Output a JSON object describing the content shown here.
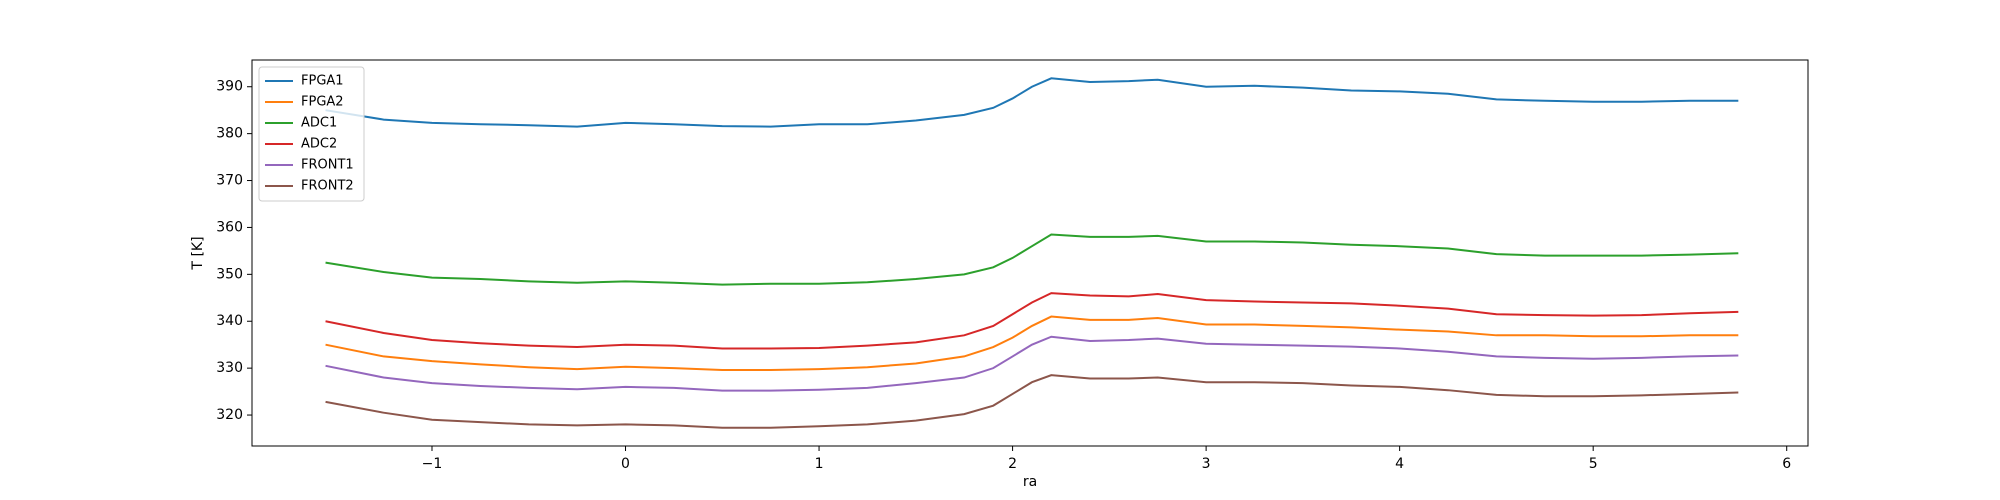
{
  "chart_data": {
    "type": "line",
    "xlabel": "ra",
    "ylabel": "T [K]",
    "x": [
      -1.55,
      -1.25,
      -1.0,
      -0.75,
      -0.5,
      -0.25,
      0,
      0.25,
      0.5,
      0.75,
      1.0,
      1.25,
      1.5,
      1.75,
      1.9,
      2.0,
      2.1,
      2.2,
      2.4,
      2.6,
      2.75,
      3.0,
      3.25,
      3.5,
      3.75,
      4.0,
      4.25,
      4.5,
      4.75,
      5.0,
      5.25,
      5.5,
      5.75
    ],
    "series": [
      {
        "name": "FPGA1",
        "color": "#1f77b4",
        "values": [
          385,
          383,
          382.3,
          382,
          381.8,
          381.5,
          382.3,
          382,
          381.6,
          381.5,
          382,
          382,
          382.8,
          384,
          385.5,
          387.5,
          390,
          391.8,
          391,
          391.2,
          391.5,
          390,
          390.2,
          389.8,
          389.2,
          389,
          388.5,
          387.3,
          387,
          386.8,
          386.8,
          387,
          387
        ]
      },
      {
        "name": "FPGA2",
        "color": "#ff7f0e",
        "values": [
          335,
          332.5,
          331.5,
          330.8,
          330.2,
          329.8,
          330.3,
          330,
          329.6,
          329.6,
          329.8,
          330.2,
          331,
          332.5,
          334.5,
          336.5,
          339,
          341,
          340.3,
          340.3,
          340.7,
          339.3,
          339.3,
          339,
          338.7,
          338.2,
          337.8,
          337,
          337,
          336.8,
          336.8,
          337,
          337
        ]
      },
      {
        "name": "ADC1",
        "color": "#2ca02c",
        "values": [
          352.5,
          350.5,
          349.3,
          349,
          348.5,
          348.2,
          348.5,
          348.2,
          347.8,
          348,
          348,
          348.3,
          349,
          350,
          351.5,
          353.5,
          356,
          358.5,
          358,
          358,
          358.2,
          357,
          357,
          356.8,
          356.3,
          356,
          355.5,
          354.3,
          354,
          354,
          354,
          354.2,
          354.5
        ]
      },
      {
        "name": "ADC2",
        "color": "#d62728",
        "values": [
          340,
          337.5,
          336,
          335.3,
          334.8,
          334.5,
          335,
          334.8,
          334.2,
          334.2,
          334.3,
          334.8,
          335.5,
          337,
          339,
          341.5,
          344,
          346,
          345.5,
          345.3,
          345.8,
          344.5,
          344.2,
          344,
          343.8,
          343.3,
          342.7,
          341.5,
          341.3,
          341.2,
          341.3,
          341.7,
          342
        ]
      },
      {
        "name": "FRONT1",
        "color": "#9467bd",
        "values": [
          330.5,
          328,
          326.8,
          326.2,
          325.8,
          325.5,
          326,
          325.8,
          325.2,
          325.2,
          325.4,
          325.8,
          326.8,
          328,
          330,
          332.5,
          335,
          336.7,
          335.8,
          336,
          336.3,
          335.2,
          335,
          334.8,
          334.6,
          334.2,
          333.5,
          332.5,
          332.2,
          332,
          332.2,
          332.5,
          332.7
        ]
      },
      {
        "name": "FRONT2",
        "color": "#8c564b",
        "values": [
          322.8,
          320.5,
          319,
          318.5,
          318,
          317.8,
          318,
          317.8,
          317.3,
          317.3,
          317.6,
          318,
          318.8,
          320.2,
          322,
          324.5,
          327,
          328.5,
          327.8,
          327.8,
          328,
          327,
          327,
          326.8,
          326.3,
          326,
          325.3,
          324.3,
          324,
          324,
          324.2,
          324.5,
          324.8
        ]
      }
    ],
    "xlim": [
      -1.93,
      6.11
    ],
    "ylim": [
      313.4,
      395.7
    ],
    "xticks": [
      {
        "value": -1,
        "label": "−1"
      },
      0,
      1,
      2,
      3,
      4,
      5,
      6
    ],
    "yticks": [
      320,
      330,
      340,
      350,
      360,
      370,
      380,
      390
    ],
    "legend": "upper left"
  }
}
